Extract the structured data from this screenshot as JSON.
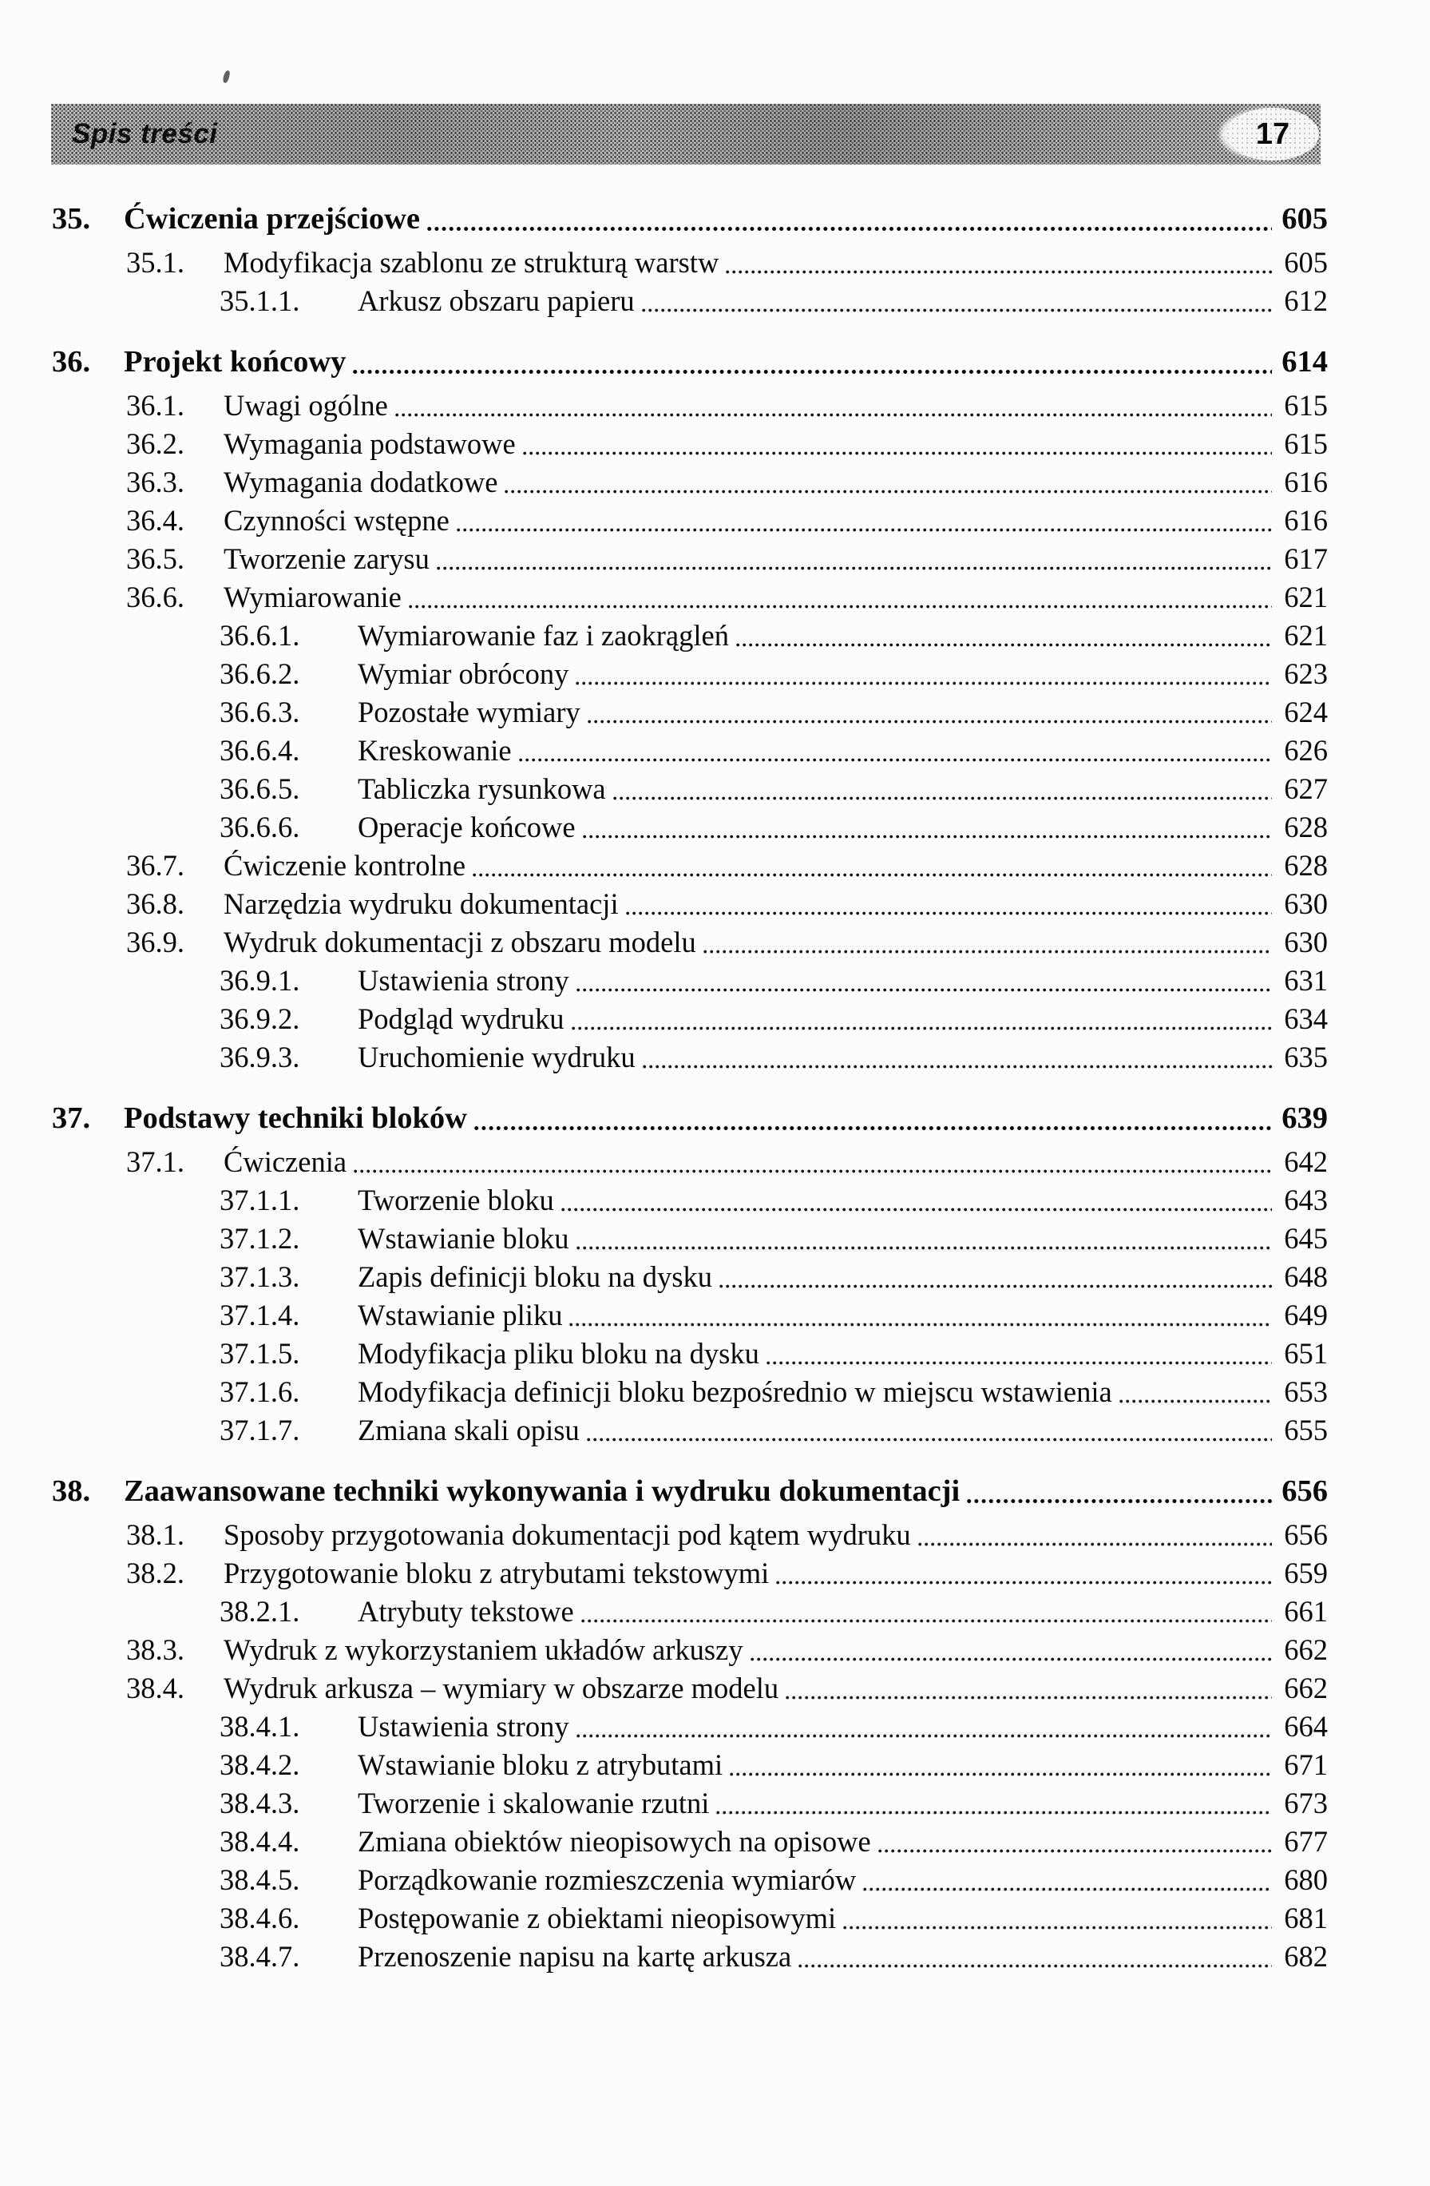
{
  "header": {
    "section_title": "Spis treści",
    "page_number": "17"
  },
  "toc": {
    "items": [
      {
        "level": 1,
        "bold": true,
        "num": "35.",
        "title": "Ćwiczenia przejściowe",
        "page": "605"
      },
      {
        "level": 2,
        "bold": false,
        "num": "35.1.",
        "title": "Modyfikacja szablonu ze strukturą warstw",
        "page": "605"
      },
      {
        "level": 3,
        "bold": false,
        "num": "35.1.1.",
        "title": "Arkusz obszaru papieru",
        "page": "612"
      },
      {
        "level": 1,
        "bold": true,
        "num": "36.",
        "title": "Projekt końcowy",
        "page": "614"
      },
      {
        "level": 2,
        "bold": false,
        "num": "36.1.",
        "title": "Uwagi ogólne",
        "page": "615"
      },
      {
        "level": 2,
        "bold": false,
        "num": "36.2.",
        "title": "Wymagania podstawowe",
        "page": "615"
      },
      {
        "level": 2,
        "bold": false,
        "num": "36.3.",
        "title": "Wymagania dodatkowe",
        "page": "616"
      },
      {
        "level": 2,
        "bold": false,
        "num": "36.4.",
        "title": "Czynności wstępne",
        "page": "616"
      },
      {
        "level": 2,
        "bold": false,
        "num": "36.5.",
        "title": "Tworzenie zarysu",
        "page": "617"
      },
      {
        "level": 2,
        "bold": false,
        "num": "36.6.",
        "title": "Wymiarowanie",
        "page": "621"
      },
      {
        "level": 3,
        "bold": false,
        "num": "36.6.1.",
        "title": "Wymiarowanie faz i zaokrągleń",
        "page": "621"
      },
      {
        "level": 3,
        "bold": false,
        "num": "36.6.2.",
        "title": "Wymiar obrócony",
        "page": "623"
      },
      {
        "level": 3,
        "bold": false,
        "num": "36.6.3.",
        "title": "Pozostałe wymiary",
        "page": "624"
      },
      {
        "level": 3,
        "bold": false,
        "num": "36.6.4.",
        "title": "Kreskowanie",
        "page": "626"
      },
      {
        "level": 3,
        "bold": false,
        "num": "36.6.5.",
        "title": "Tabliczka rysunkowa",
        "page": "627"
      },
      {
        "level": 3,
        "bold": false,
        "num": "36.6.6.",
        "title": "Operacje końcowe",
        "page": "628"
      },
      {
        "level": 2,
        "bold": false,
        "num": "36.7.",
        "title": "Ćwiczenie kontrolne",
        "page": "628"
      },
      {
        "level": 2,
        "bold": false,
        "num": "36.8.",
        "title": "Narzędzia wydruku dokumentacji",
        "page": "630"
      },
      {
        "level": 2,
        "bold": false,
        "num": "36.9.",
        "title": "Wydruk dokumentacji z obszaru modelu",
        "page": "630"
      },
      {
        "level": 3,
        "bold": false,
        "num": "36.9.1.",
        "title": "Ustawienia strony",
        "page": "631"
      },
      {
        "level": 3,
        "bold": false,
        "num": "36.9.2.",
        "title": "Podgląd wydruku",
        "page": "634"
      },
      {
        "level": 3,
        "bold": false,
        "num": "36.9.3.",
        "title": "Uruchomienie wydruku",
        "page": "635"
      },
      {
        "level": 1,
        "bold": true,
        "num": "37.",
        "title": "Podstawy techniki bloków",
        "page": "639"
      },
      {
        "level": 2,
        "bold": false,
        "num": "37.1.",
        "title": "Ćwiczenia",
        "page": "642"
      },
      {
        "level": 3,
        "bold": false,
        "num": "37.1.1.",
        "title": "Tworzenie bloku",
        "page": "643"
      },
      {
        "level": 3,
        "bold": false,
        "num": "37.1.2.",
        "title": "Wstawianie bloku",
        "page": "645"
      },
      {
        "level": 3,
        "bold": false,
        "num": "37.1.3.",
        "title": "Zapis definicji bloku na dysku",
        "page": "648"
      },
      {
        "level": 3,
        "bold": false,
        "num": "37.1.4.",
        "title": "Wstawianie pliku",
        "page": "649"
      },
      {
        "level": 3,
        "bold": false,
        "num": "37.1.5.",
        "title": "Modyfikacja pliku bloku na dysku",
        "page": "651"
      },
      {
        "level": 3,
        "bold": false,
        "num": "37.1.6.",
        "title": "Modyfikacja definicji bloku bezpośrednio w miejscu wstawienia",
        "page": "653"
      },
      {
        "level": 3,
        "bold": false,
        "num": "37.1.7.",
        "title": "Zmiana skali opisu",
        "page": "655"
      },
      {
        "level": 1,
        "bold": true,
        "num": "38.",
        "title": "Zaawansowane techniki wykonywania i wydruku dokumentacji",
        "page": "656"
      },
      {
        "level": 2,
        "bold": false,
        "num": "38.1.",
        "title": "Sposoby przygotowania dokumentacji pod kątem wydruku",
        "page": "656"
      },
      {
        "level": 2,
        "bold": false,
        "num": "38.2.",
        "title": "Przygotowanie bloku z atrybutami tekstowymi",
        "page": "659"
      },
      {
        "level": 3,
        "bold": false,
        "num": "38.2.1.",
        "title": "Atrybuty tekstowe",
        "page": "661"
      },
      {
        "level": 2,
        "bold": false,
        "num": "38.3.",
        "title": "Wydruk z wykorzystaniem układów arkuszy",
        "page": "662"
      },
      {
        "level": 2,
        "bold": false,
        "num": "38.4.",
        "title": "Wydruk arkusza – wymiary w obszarze modelu",
        "page": "662"
      },
      {
        "level": 3,
        "bold": false,
        "num": "38.4.1.",
        "title": "Ustawienia strony",
        "page": "664"
      },
      {
        "level": 3,
        "bold": false,
        "num": "38.4.2.",
        "title": "Wstawianie bloku z atrybutami",
        "page": "671"
      },
      {
        "level": 3,
        "bold": false,
        "num": "38.4.3.",
        "title": "Tworzenie i skalowanie rzutni",
        "page": "673"
      },
      {
        "level": 3,
        "bold": false,
        "num": "38.4.4.",
        "title": "Zmiana obiektów nieopisowych na opisowe",
        "page": "677"
      },
      {
        "level": 3,
        "bold": false,
        "num": "38.4.5.",
        "title": "Porządkowanie rozmieszczenia wymiarów",
        "page": "680"
      },
      {
        "level": 3,
        "bold": false,
        "num": "38.4.6.",
        "title": "Postępowanie z obiektami nieopisowymi",
        "page": "681"
      },
      {
        "level": 3,
        "bold": false,
        "num": "38.4.7.",
        "title": "Przenoszenie napisu na kartę arkusza",
        "page": "682"
      }
    ]
  }
}
